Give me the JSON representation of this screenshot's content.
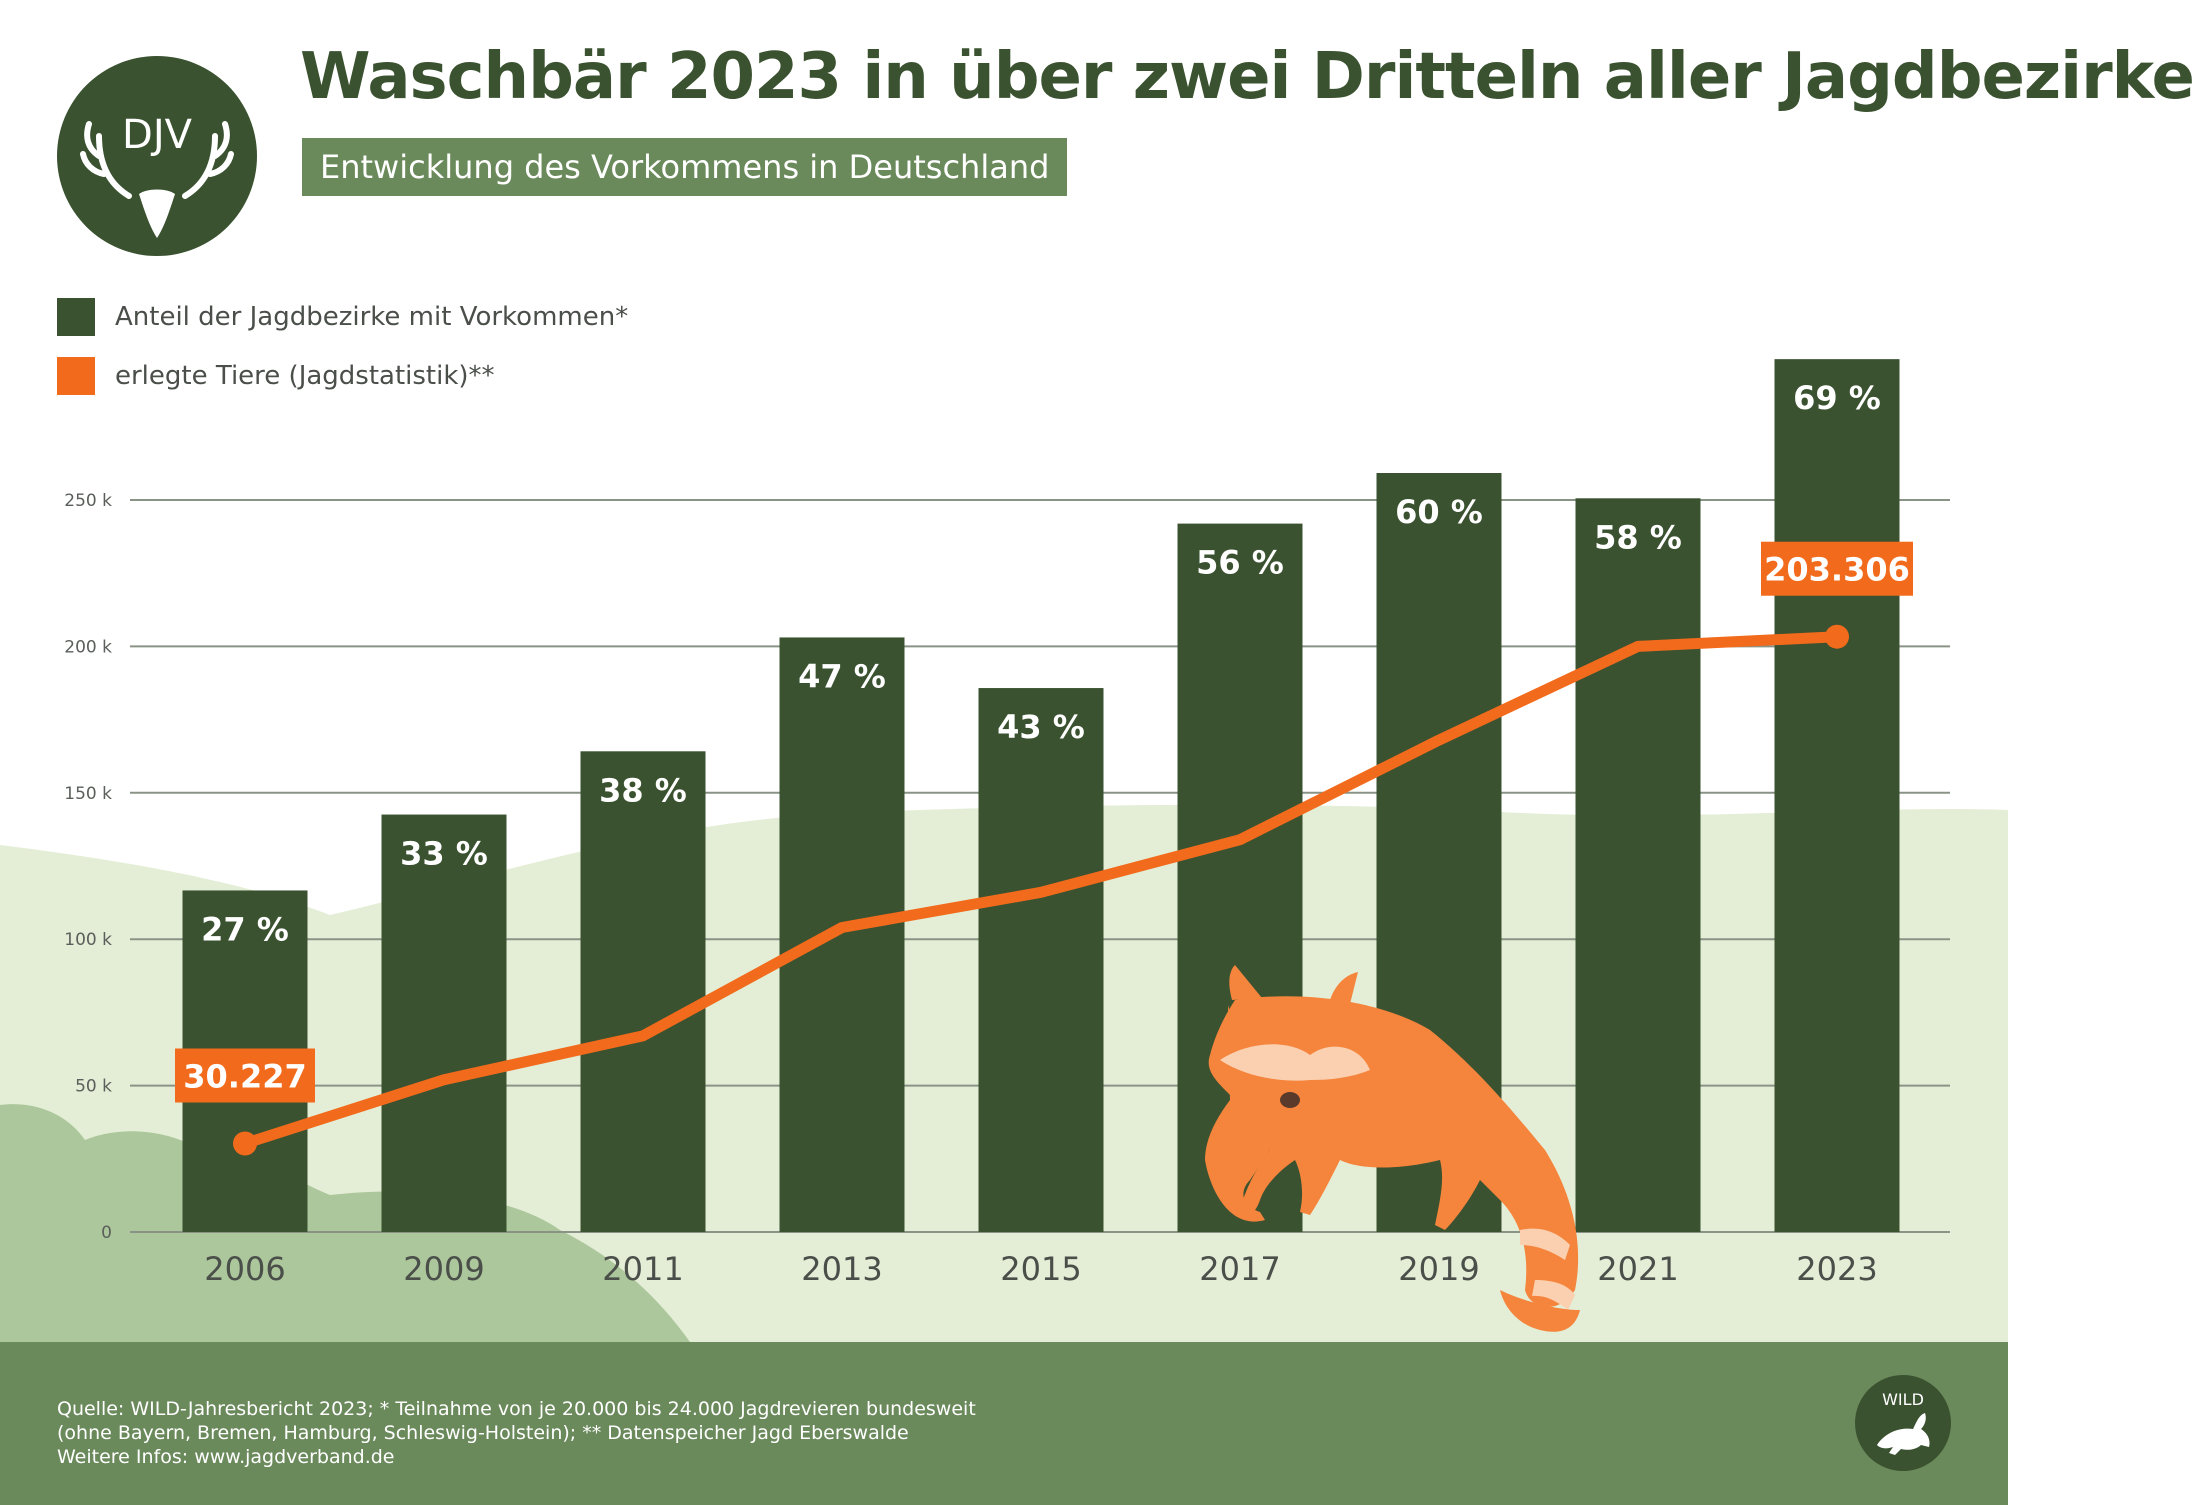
{
  "header": {
    "title": "Waschbär 2023 in über zwei Dritteln aller Jagdbezirke",
    "subtitle": "Entwicklung des Vorkommens in Deutschland",
    "logo_text": "DJV"
  },
  "legend": {
    "bars_label": "Anteil der Jagdbezirke mit Vorkommen*",
    "line_label": "erlegte Tiere (Jagdstatistik)**"
  },
  "colors": {
    "bar": "#3a5230",
    "line": "#f26a1b",
    "grid": "#8a9486",
    "hill_light": "#e4eed6",
    "hill_mid": "#adc79c",
    "footer": "#6b8a5c",
    "title": "#3b5230"
  },
  "chart_data": {
    "type": "bar",
    "categories": [
      "2006",
      "2009",
      "2011",
      "2013",
      "2015",
      "2017",
      "2019",
      "2021",
      "2023"
    ],
    "series": [
      {
        "name": "Anteil der Jagdbezirke mit Vorkommen*",
        "kind": "bar",
        "values": [
          27,
          33,
          38,
          47,
          43,
          56,
          60,
          58,
          69
        ],
        "labels": [
          "27 %",
          "33 %",
          "38 %",
          "47 %",
          "43 %",
          "56 %",
          "60 %",
          "58 %",
          "69 %"
        ]
      },
      {
        "name": "erlegte Tiere (Jagdstatistik)**",
        "kind": "line",
        "values": [
          30227,
          52000,
          67000,
          104000,
          116000,
          134000,
          168000,
          200000,
          203306
        ],
        "point_labels": [
          "30.227",
          "",
          "",
          "",
          "",
          "",
          "",
          "",
          "203.306"
        ]
      }
    ],
    "y_axis": {
      "range": [
        0,
        260000
      ],
      "ticks": [
        0,
        50000,
        100000,
        150000,
        200000,
        250000
      ],
      "tick_labels": [
        "0",
        "50 k",
        "100 k",
        "150 k",
        "200 k",
        "250 k"
      ]
    },
    "grid": true,
    "legend_position": "top-left"
  },
  "footer": {
    "line1": "Quelle: WILD-Jahresbericht 2023; * Teilnahme von je 20.000 bis 24.000 Jagdrevieren bundesweit",
    "line2": "(ohne Bayern, Bremen, Hamburg, Schleswig-Holstein); ** Datenspeicher Jagd Eberswalde",
    "line3": "Weitere Infos: www.jagdverband.de",
    "badge_text": "WILD"
  }
}
